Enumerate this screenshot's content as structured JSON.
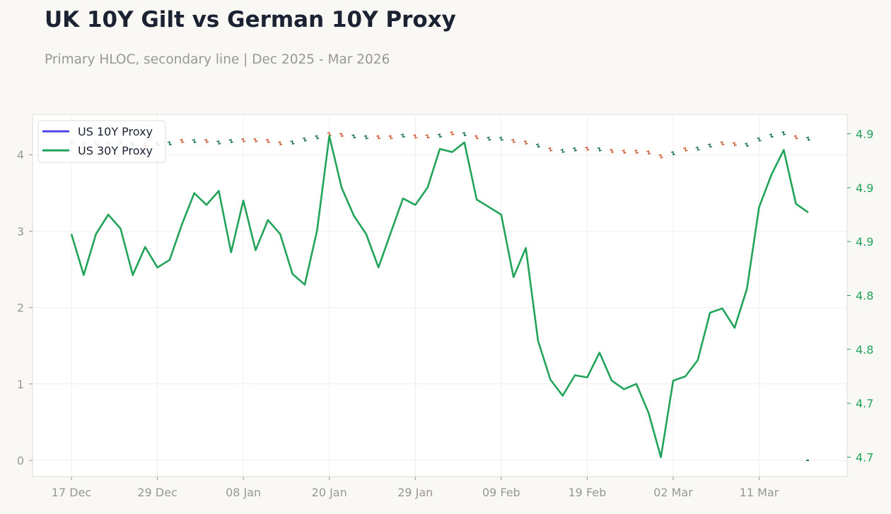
{
  "header": {
    "title": "UK 10Y Gilt vs German 10Y Proxy",
    "subtitle": "Primary HLOC, secondary line | Dec 2025 - Mar 2026"
  },
  "colors": {
    "background": "#f9f8f5",
    "plot_background": "#ffffff",
    "up": "#1f7a4a",
    "down": "#d0603a",
    "us10y_line": "#4f46e5",
    "us30y_line": "#22a35a",
    "axis_text": "#999792",
    "right_axis_text": "#22a35a",
    "grid": "#efefef",
    "frame": "#dddcd5"
  },
  "chart_data": {
    "type": "line",
    "title": "UK 10Y Gilt vs German 10Y Proxy",
    "subtitle": "Primary HLOC, secondary line | Dec 2025 - Mar 2026",
    "grid": true,
    "legend_position": "top-left",
    "x_axis": {
      "ticks": [
        "17 Dec",
        "29 Dec",
        "08 Jan",
        "20 Jan",
        "29 Jan",
        "09 Feb",
        "19 Feb",
        "02 Mar",
        "11 Mar"
      ],
      "tick_index": [
        0,
        7,
        14,
        21,
        28,
        35,
        42,
        49,
        56
      ]
    },
    "y_left": {
      "range": [
        -0.2,
        4.5
      ],
      "ticks": [
        0,
        1,
        2,
        3,
        4
      ],
      "tick_labels": [
        "0",
        "1",
        "2",
        "3",
        "4"
      ]
    },
    "y_right": {
      "range": [
        4.632,
        4.968
      ],
      "ticks": [
        4.65,
        4.7,
        4.75,
        4.8,
        4.85,
        4.9,
        4.95
      ],
      "tick_labels": [
        "4.7",
        "4.7",
        "4.8",
        "4.8",
        "4.9",
        "4.9",
        "4.9"
      ]
    },
    "hloc": {
      "name": "UK 10Y Gilt",
      "close": [
        4.16,
        4.15,
        4.15,
        4.15,
        4.16,
        4.14,
        4.13,
        4.14,
        4.15,
        4.18,
        4.18,
        4.18,
        4.16,
        4.18,
        4.19,
        4.19,
        4.18,
        4.15,
        4.16,
        4.2,
        4.23,
        4.27,
        4.26,
        4.24,
        4.23,
        4.23,
        4.23,
        4.25,
        4.24,
        4.24,
        4.25,
        4.28,
        4.27,
        4.23,
        4.21,
        4.21,
        4.18,
        4.16,
        4.12,
        4.07,
        4.05,
        4.07,
        4.08,
        4.07,
        4.05,
        4.04,
        4.04,
        4.03,
        3.98,
        4.02,
        4.07,
        4.08,
        4.12,
        4.15,
        4.14,
        4.13,
        4.2,
        4.25,
        4.28,
        4.23,
        4.21
      ],
      "direction": [
        "down",
        "down",
        "down",
        "down",
        "down",
        "up",
        "down",
        "up",
        "up",
        "down",
        "up",
        "down",
        "up",
        "up",
        "down",
        "down",
        "down",
        "down",
        "up",
        "up",
        "up",
        "down",
        "down",
        "up",
        "up",
        "down",
        "down",
        "up",
        "down",
        "down",
        "up",
        "down",
        "up",
        "down",
        "up",
        "up",
        "down",
        "down",
        "up",
        "down",
        "up",
        "up",
        "down",
        "up",
        "down",
        "down",
        "down",
        "down",
        "down",
        "up",
        "down",
        "up",
        "up",
        "down",
        "down",
        "up",
        "up",
        "up",
        "up",
        "down",
        "up"
      ]
    },
    "series": [
      {
        "name": "US 10Y Proxy",
        "axis": "left",
        "values": []
      },
      {
        "name": "US 30Y Proxy",
        "axis": "right",
        "values": [
          4.857,
          4.819,
          4.857,
          4.875,
          4.862,
          4.819,
          4.845,
          4.826,
          4.833,
          4.866,
          4.895,
          4.884,
          4.897,
          4.84,
          4.888,
          4.842,
          4.87,
          4.857,
          4.82,
          4.81,
          4.86,
          4.948,
          4.9,
          4.874,
          4.857,
          4.826,
          4.858,
          4.89,
          4.884,
          4.9,
          4.936,
          4.933,
          4.942,
          4.889,
          4.882,
          4.875,
          4.817,
          4.844,
          4.758,
          4.722,
          4.707,
          4.726,
          4.724,
          4.747,
          4.721,
          4.713,
          4.718,
          4.691,
          4.65,
          4.721,
          4.725,
          4.74,
          4.784,
          4.788,
          4.77,
          4.806,
          4.882,
          4.912,
          4.935,
          4.885,
          4.877
        ]
      }
    ]
  }
}
